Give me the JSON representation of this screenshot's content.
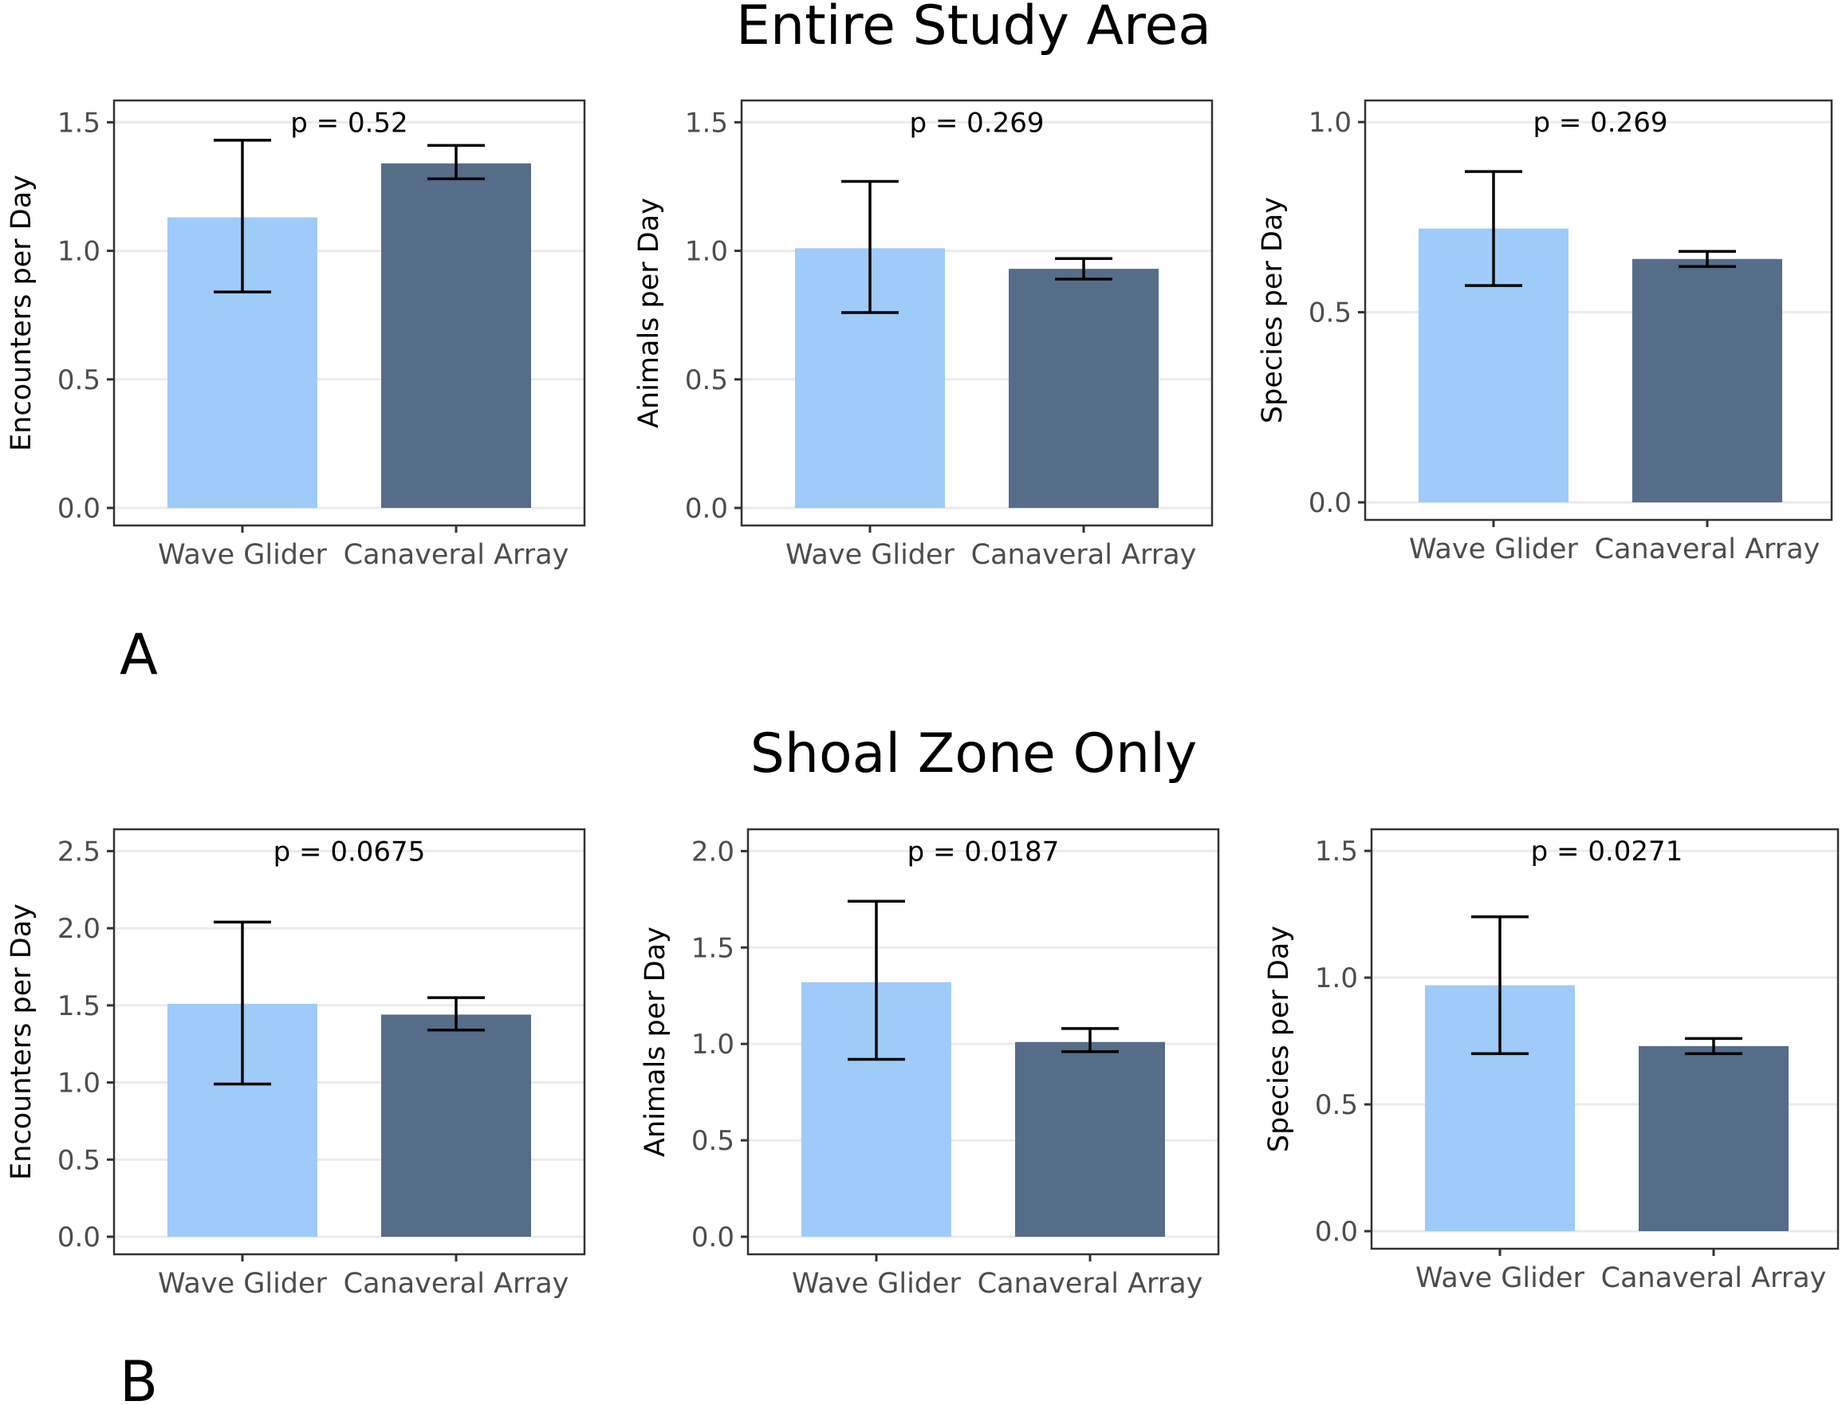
{
  "figure": {
    "sections": [
      {
        "title": "Entire Study Area",
        "letter": "A"
      },
      {
        "title": "Shoal Zone Only",
        "letter": "B"
      }
    ]
  },
  "chart_data": [
    {
      "type": "bar",
      "section": "Entire Study Area",
      "panel": "A1",
      "categories": [
        "Wave Glider",
        "Canaveral Array"
      ],
      "values": [
        1.13,
        1.34
      ],
      "error_low": [
        0.84,
        1.28
      ],
      "error_high": [
        1.43,
        1.41
      ],
      "colors": [
        "#9ecbf9",
        "#566d8a"
      ],
      "ylabel": "Encounters per Day",
      "ylim": [
        0,
        1.56
      ],
      "yticks": [
        0.0,
        0.5,
        1.0,
        1.5
      ],
      "ytick_labels": [
        "0.0",
        "0.5",
        "1.0",
        "1.5"
      ],
      "annotation": "p = 0.52"
    },
    {
      "type": "bar",
      "section": "Entire Study Area",
      "panel": "A2",
      "categories": [
        "Wave Glider",
        "Canaveral Array"
      ],
      "values": [
        1.01,
        0.93
      ],
      "error_low": [
        0.76,
        0.89
      ],
      "error_high": [
        1.27,
        0.97
      ],
      "colors": [
        "#9ecbf9",
        "#566d8a"
      ],
      "ylabel": "Animals per Day",
      "ylim": [
        0,
        1.56
      ],
      "yticks": [
        0.0,
        0.5,
        1.0,
        1.5
      ],
      "ytick_labels": [
        "0.0",
        "0.5",
        "1.0",
        "1.5"
      ],
      "annotation": "p = 0.269"
    },
    {
      "type": "bar",
      "section": "Entire Study Area",
      "panel": "A3",
      "categories": [
        "Wave Glider",
        "Canaveral Array"
      ],
      "values": [
        0.72,
        0.64
      ],
      "error_low": [
        0.57,
        0.62
      ],
      "error_high": [
        0.87,
        0.66
      ],
      "colors": [
        "#9ecbf9",
        "#566d8a"
      ],
      "ylabel": "Species per Day",
      "ylim": [
        0,
        1.04
      ],
      "yticks": [
        0.0,
        0.5,
        1.0
      ],
      "ytick_labels": [
        "0.0",
        "0.5",
        "1.0"
      ],
      "annotation": "p = 0.269"
    },
    {
      "type": "bar",
      "section": "Shoal Zone Only",
      "panel": "B1",
      "categories": [
        "Wave Glider",
        "Canaveral Array"
      ],
      "values": [
        1.51,
        1.44
      ],
      "error_low": [
        0.99,
        1.34
      ],
      "error_high": [
        2.04,
        1.55
      ],
      "colors": [
        "#9ecbf9",
        "#566d8a"
      ],
      "ylabel": "Encounters per Day",
      "ylim": [
        0,
        2.6
      ],
      "yticks": [
        0.0,
        0.5,
        1.0,
        1.5,
        2.0,
        2.5
      ],
      "ytick_labels": [
        "0.0",
        "0.5",
        "1.0",
        "1.5",
        "2.0",
        "2.5"
      ],
      "annotation": "p = 0.0675"
    },
    {
      "type": "bar",
      "section": "Shoal Zone Only",
      "panel": "B2",
      "categories": [
        "Wave Glider",
        "Canaveral Array"
      ],
      "values": [
        1.32,
        1.01
      ],
      "error_low": [
        0.92,
        0.96
      ],
      "error_high": [
        1.74,
        1.08
      ],
      "colors": [
        "#9ecbf9",
        "#566d8a"
      ],
      "ylabel": "Animals per Day",
      "ylim": [
        0,
        2.08
      ],
      "yticks": [
        0.0,
        0.5,
        1.0,
        1.5,
        2.0
      ],
      "ytick_labels": [
        "0.0",
        "0.5",
        "1.0",
        "1.5",
        "2.0"
      ],
      "annotation": "p = 0.0187"
    },
    {
      "type": "bar",
      "section": "Shoal Zone Only",
      "panel": "B3",
      "categories": [
        "Wave Glider",
        "Canaveral Array"
      ],
      "values": [
        0.97,
        0.73
      ],
      "error_low": [
        0.7,
        0.7
      ],
      "error_high": [
        1.24,
        0.76
      ],
      "colors": [
        "#9ecbf9",
        "#566d8a"
      ],
      "ylabel": "Species per Day",
      "ylim": [
        0,
        1.56
      ],
      "yticks": [
        0.0,
        0.5,
        1.0,
        1.5
      ],
      "ytick_labels": [
        "0.0",
        "0.5",
        "1.0",
        "1.5"
      ],
      "annotation": "p = 0.0271"
    }
  ]
}
